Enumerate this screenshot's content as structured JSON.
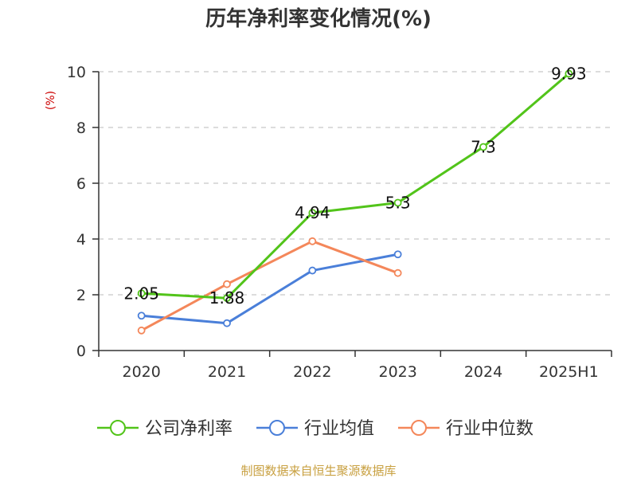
{
  "chart_data": {
    "type": "line",
    "title": "历年净利率变化情况(%)",
    "ylabel": "(%)",
    "xlabel": "",
    "categories": [
      "2020",
      "2021",
      "2022",
      "2023",
      "2024",
      "2025H1"
    ],
    "ylim": [
      0,
      10
    ],
    "yticks": [
      "0",
      "2",
      "4",
      "6",
      "8",
      "10"
    ],
    "grid": true,
    "legend_position": "bottom",
    "series": [
      {
        "name": "公司净利率",
        "color": "#52c41a",
        "values": [
          2.05,
          1.88,
          4.94,
          5.3,
          7.3,
          9.93
        ],
        "labels": [
          "2.05",
          "1.88",
          "4.94",
          "5.3",
          "7.3",
          "9.93"
        ]
      },
      {
        "name": "行业均值",
        "color": "#4a7fd9",
        "values": [
          1.25,
          0.98,
          2.87,
          3.45,
          null,
          null
        ]
      },
      {
        "name": "行业中位数",
        "color": "#f4875a",
        "values": [
          0.72,
          2.38,
          3.92,
          2.78,
          null,
          null
        ]
      }
    ]
  },
  "footer": {
    "source": "制图数据来自恒生聚源数据库"
  }
}
